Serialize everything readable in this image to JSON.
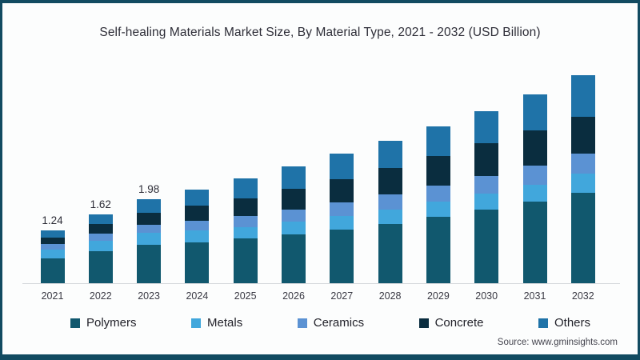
{
  "frame": {
    "border_color": "#124B61",
    "background": "#FCFDFD"
  },
  "title": "Self-healing Materials Market Size, By Material Type, 2021 - 2032 (USD Billion)",
  "source": "Source: www.gminsights.com",
  "legend": [
    {
      "label": "Polymers",
      "color": "#11586E"
    },
    {
      "label": "Metals",
      "color": "#41A7DC"
    },
    {
      "label": "Ceramics",
      "color": "#5B92D3"
    },
    {
      "label": "Concrete",
      "color": "#0A2D3F"
    },
    {
      "label": "Others",
      "color": "#1F73A8"
    }
  ],
  "chart_data": {
    "type": "bar",
    "stacked": true,
    "title": "Self-healing Materials Market Size, By Material Type, 2021 - 2032 (USD Billion)",
    "xlabel": "",
    "ylabel": "USD Billion",
    "grid": false,
    "legend_position": "bottom",
    "categories": [
      "2021",
      "2022",
      "2023",
      "2024",
      "2025",
      "2026",
      "2027",
      "2028",
      "2029",
      "2030",
      "2031",
      "2032"
    ],
    "series": [
      {
        "name": "Polymers",
        "color": "#11586E",
        "values": [
          0.59,
          0.75,
          0.9,
          0.97,
          1.05,
          1.15,
          1.26,
          1.4,
          1.56,
          1.73,
          1.92,
          2.13
        ]
      },
      {
        "name": "Metals",
        "color": "#41A7DC",
        "values": [
          0.21,
          0.25,
          0.28,
          0.28,
          0.28,
          0.3,
          0.32,
          0.34,
          0.36,
          0.38,
          0.41,
          0.45
        ]
      },
      {
        "name": "Ceramics",
        "color": "#5B92D3",
        "values": [
          0.13,
          0.17,
          0.2,
          0.23,
          0.26,
          0.29,
          0.32,
          0.35,
          0.38,
          0.41,
          0.44,
          0.48
        ]
      },
      {
        "name": "Concrete",
        "color": "#0A2D3F",
        "values": [
          0.15,
          0.22,
          0.28,
          0.35,
          0.42,
          0.48,
          0.55,
          0.62,
          0.7,
          0.78,
          0.84,
          0.86
        ]
      },
      {
        "name": "Others",
        "color": "#1F73A8",
        "values": [
          0.16,
          0.23,
          0.32,
          0.37,
          0.46,
          0.53,
          0.6,
          0.64,
          0.7,
          0.75,
          0.84,
          0.98
        ]
      }
    ],
    "totals_estimated": [
      1.24,
      1.62,
      1.98,
      2.2,
      2.47,
      2.75,
      3.05,
      3.35,
      3.7,
      4.05,
      4.45,
      4.9
    ],
    "data_labels": {
      "2021": "1.24",
      "2022": "1.62",
      "2023": "1.98"
    }
  }
}
